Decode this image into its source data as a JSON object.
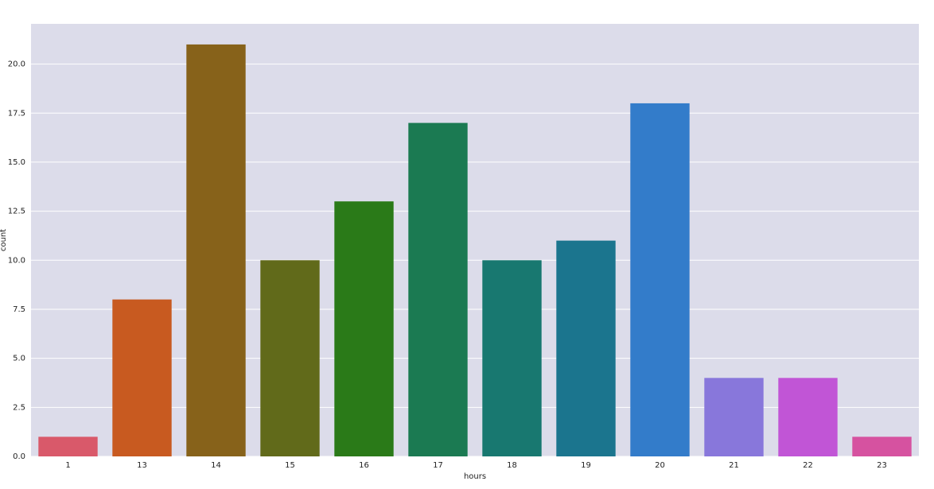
{
  "chart_data": {
    "type": "bar",
    "x_label": "hours",
    "y_label": "count",
    "categories": [
      "1",
      "13",
      "14",
      "15",
      "16",
      "17",
      "18",
      "19",
      "20",
      "21",
      "22",
      "23"
    ],
    "values": [
      1,
      8,
      21,
      10,
      13,
      17,
      10,
      11,
      18,
      4,
      4,
      1
    ],
    "colors": [
      "#d9596a",
      "#c85a20",
      "#87621a",
      "#616a1a",
      "#2a7a18",
      "#1b7a52",
      "#187870",
      "#1b758e",
      "#337cca",
      "#8877db",
      "#c155d6",
      "#d652a0"
    ],
    "ylim": [
      0,
      22.05
    ],
    "yticks": [
      {
        "value": 0,
        "label": "0.0"
      },
      2.5,
      {
        "value": 5,
        "label": "5.0"
      },
      7.5,
      {
        "value": 10,
        "label": "10.0"
      },
      12.5,
      {
        "value": 15,
        "label": "15.0"
      },
      17.5,
      {
        "value": 20,
        "label": "20.0"
      }
    ],
    "grid": true
  }
}
